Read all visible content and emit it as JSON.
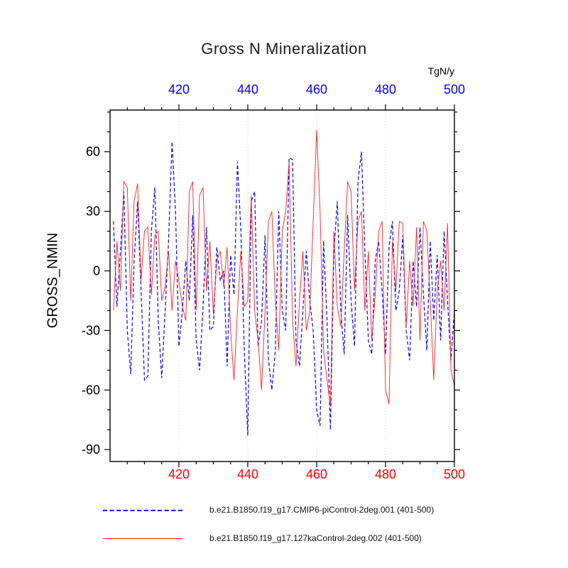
{
  "chart": {
    "title": "Gross N Mineralization",
    "ylabel": "GROSS_NMIN",
    "top_axis_unit": "TgN/y"
  },
  "legend": {
    "items": [
      {
        "label": "b.e21.B1850.f19_g17.CMIP6-piControl-2deg.001 (401-500)",
        "color": "#0000ff",
        "style": "dashed"
      },
      {
        "label": "b.e21.B1850.f19_g17.127kaControl-2deg.002 (401-500)",
        "color": "#ff2020",
        "style": "solid"
      }
    ]
  },
  "chart_data": {
    "type": "line",
    "title": "Gross N Mineralization",
    "xlabel": "",
    "ylabel": "GROSS_NMIN",
    "top_axis_label": "TgN/y",
    "xlim": [
      400,
      500
    ],
    "ylim": [
      -96,
      81
    ],
    "x_ticks": [
      420,
      440,
      460,
      480,
      500
    ],
    "y_ticks": [
      -90,
      -60,
      -30,
      0,
      30,
      60
    ],
    "grid_x": [
      420,
      440,
      460,
      480
    ],
    "bottom_tick_label_color": "#ff0000",
    "top_tick_label_color": "#0000ff",
    "left_tick_label_color": "#000000",
    "grid_color": "#c8c8c8",
    "legend_position": "bottom",
    "x": [
      401,
      402,
      403,
      404,
      405,
      406,
      407,
      408,
      409,
      410,
      411,
      412,
      413,
      414,
      415,
      416,
      417,
      418,
      419,
      420,
      421,
      422,
      423,
      424,
      425,
      426,
      427,
      428,
      429,
      430,
      431,
      432,
      433,
      434,
      435,
      436,
      437,
      438,
      439,
      440,
      441,
      442,
      443,
      444,
      445,
      446,
      447,
      448,
      449,
      450,
      451,
      452,
      453,
      454,
      455,
      456,
      457,
      458,
      459,
      460,
      461,
      462,
      463,
      464,
      465,
      466,
      467,
      468,
      469,
      470,
      471,
      472,
      473,
      474,
      475,
      476,
      477,
      478,
      479,
      480,
      481,
      482,
      483,
      484,
      485,
      486,
      487,
      488,
      489,
      490,
      491,
      492,
      493,
      494,
      495,
      496,
      497,
      498,
      499,
      500
    ],
    "series": [
      {
        "name": "b.e21.B1850.f19_g17.CMIP6-piControl-2deg.001 (401-500)",
        "color": "#0000ff",
        "style": "dashed",
        "values": [
          25,
          -18,
          10,
          40,
          -30,
          -52,
          5,
          35,
          -10,
          -55,
          -53,
          20,
          42,
          -25,
          -54,
          -20,
          15,
          65,
          30,
          -38,
          -20,
          5,
          -15,
          28,
          -35,
          -50,
          -18,
          22,
          -30,
          -28,
          12,
          -5,
          0,
          -48,
          8,
          -12,
          55,
          20,
          -40,
          -83,
          35,
          40,
          -38,
          -25,
          18,
          -45,
          -60,
          -40,
          30,
          -20,
          -30,
          57,
          56,
          -35,
          -48,
          -20,
          10,
          -15,
          -30,
          -70,
          -78,
          15,
          -25,
          -80,
          10,
          35,
          -20,
          -42,
          28,
          -15,
          -38,
          45,
          60,
          10,
          -35,
          -42,
          5,
          15,
          -10,
          -42,
          12,
          25,
          -20,
          -10,
          18,
          -30,
          -45,
          5,
          -18,
          22,
          -12,
          -40,
          15,
          -25,
          8,
          -35,
          20,
          -15,
          -45,
          -20
        ]
      },
      {
        "name": "b.e21.B1850.f19_g17.127kaControl-2deg.002 (401-500)",
        "color": "#ff2020",
        "style": "solid",
        "values": [
          -20,
          15,
          -10,
          45,
          42,
          -15,
          35,
          44,
          -5,
          20,
          22,
          -12,
          18,
          20,
          -15,
          -8,
          10,
          -20,
          5,
          -5,
          -18,
          -25,
          40,
          45,
          -20,
          38,
          42,
          -10,
          15,
          -22,
          5,
          10,
          -8,
          12,
          -30,
          -55,
          -20,
          10,
          -18,
          -15,
          38,
          -20,
          -35,
          -60,
          -20,
          25,
          30,
          -15,
          -40,
          20,
          30,
          55,
          -25,
          -48,
          -15,
          10,
          -30,
          -20,
          25,
          71,
          30,
          -40,
          -55,
          -68,
          20,
          -18,
          -28,
          10,
          45,
          40,
          -10,
          25,
          30,
          -20,
          10,
          -35,
          -12,
          20,
          25,
          -60,
          -67,
          15,
          -10,
          25,
          24,
          -28,
          5,
          -18,
          22,
          -35,
          25,
          20,
          -15,
          -55,
          -10,
          5,
          -20,
          24,
          -50,
          -58
        ]
      }
    ]
  }
}
